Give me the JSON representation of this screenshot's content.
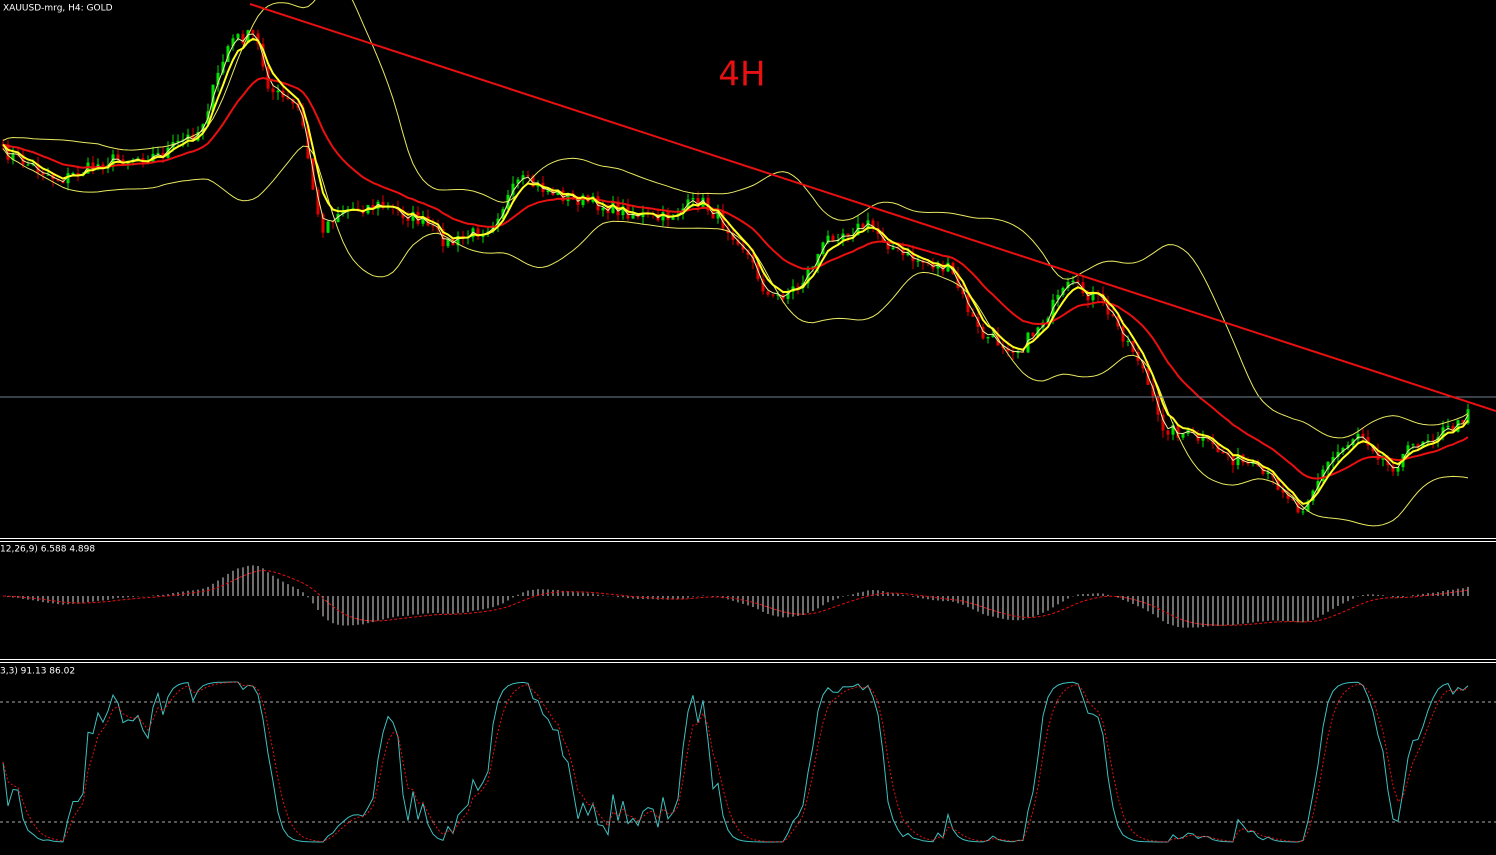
{
  "header": {
    "symbol": "XAUUSD-mrg, H4:  GOLD"
  },
  "annotation": "4H",
  "macd": {
    "label": "12,26,9) 6.588 4.898"
  },
  "stochastic": {
    "label": "3,3) 91.13 86.02"
  }
}
